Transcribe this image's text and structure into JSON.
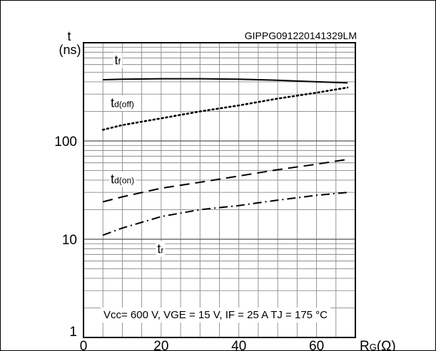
{
  "chart_data": {
    "type": "line",
    "figure_id": "GIPPG091220141329LM",
    "y_unit_symbol": "t",
    "y_unit": "(ns)",
    "x_axis_label": "RG(Ω)",
    "x_axis_main": "R",
    "x_axis_sub": "G",
    "x_axis_unit": "(Ω)",
    "y_scale": "log",
    "xlim": [
      0,
      70
    ],
    "ylim": [
      1,
      1000
    ],
    "grid": true,
    "x_ticks": [
      0,
      20,
      40,
      60
    ],
    "y_ticks": [
      1,
      10,
      100
    ],
    "conditions": {
      "vcc": "Vcc= 600 V, ",
      "vge": "VGE = 15 V, ",
      "if": "IF = 25 A ",
      "tj": "TJ = 175 °C"
    },
    "series": [
      {
        "name": "tf",
        "main": "t",
        "sub": "f",
        "style": "solid",
        "x": [
          5,
          10,
          20,
          30,
          40,
          50,
          60,
          68
        ],
        "y": [
          420,
          425,
          430,
          430,
          425,
          415,
          400,
          390
        ]
      },
      {
        "name": "td(off)",
        "main": "t",
        "sub": "d(off)",
        "style": "dotted",
        "x": [
          5,
          10,
          20,
          30,
          40,
          50,
          60,
          68
        ],
        "y": [
          130,
          145,
          170,
          200,
          230,
          270,
          310,
          350
        ]
      },
      {
        "name": "td(on)",
        "main": "t",
        "sub": "d(on)",
        "style": "dashed",
        "x": [
          5,
          10,
          20,
          30,
          40,
          50,
          60,
          68
        ],
        "y": [
          24,
          27,
          33,
          38,
          44,
          51,
          58,
          65
        ]
      },
      {
        "name": "tr",
        "main": "t",
        "sub": "r",
        "style": "dashdot",
        "x": [
          5,
          10,
          20,
          30,
          40,
          50,
          60,
          68
        ],
        "y": [
          11,
          13,
          17,
          20,
          22,
          25,
          28,
          30
        ]
      }
    ]
  }
}
